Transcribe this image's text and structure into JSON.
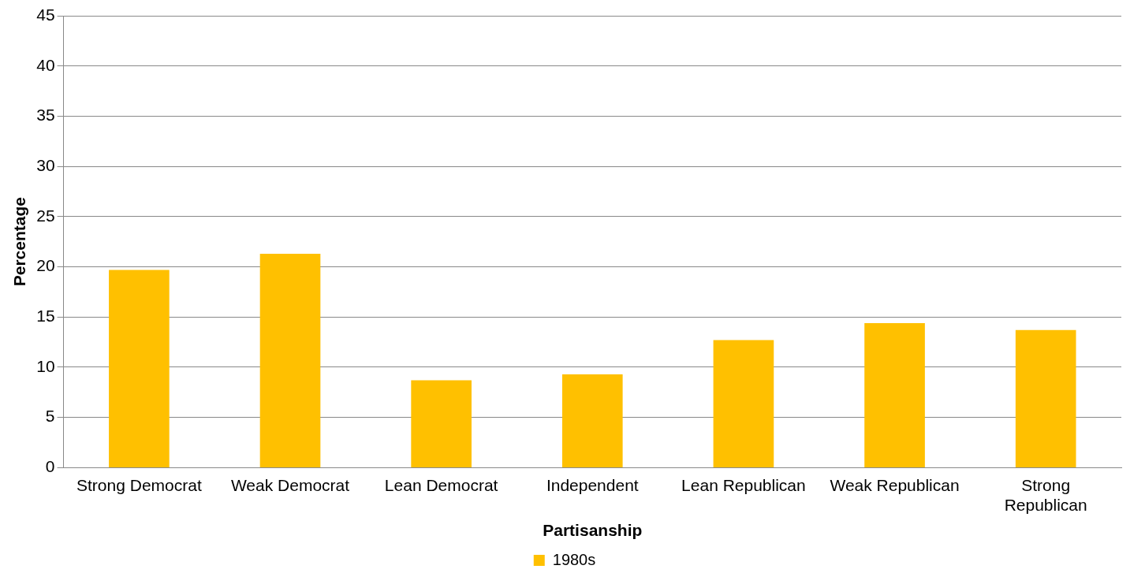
{
  "chart_data": {
    "type": "bar",
    "xlabel": "Partisanship",
    "ylabel": "Percentage",
    "categories": [
      "Strong Democrat",
      "Weak Democrat",
      "Lean Democrat",
      "Independent",
      "Lean Republican",
      "Weak Republican",
      "Strong Republican"
    ],
    "series": [
      {
        "name": "1980s",
        "color": "#ffc000",
        "values": [
          19.7,
          21.3,
          8.7,
          9.3,
          12.7,
          14.4,
          13.7
        ]
      }
    ],
    "ylim": [
      0,
      45
    ],
    "yticks": [
      0,
      5,
      10,
      15,
      20,
      25,
      30,
      35,
      40,
      45
    ],
    "grid": "y",
    "legend": "bottom"
  }
}
